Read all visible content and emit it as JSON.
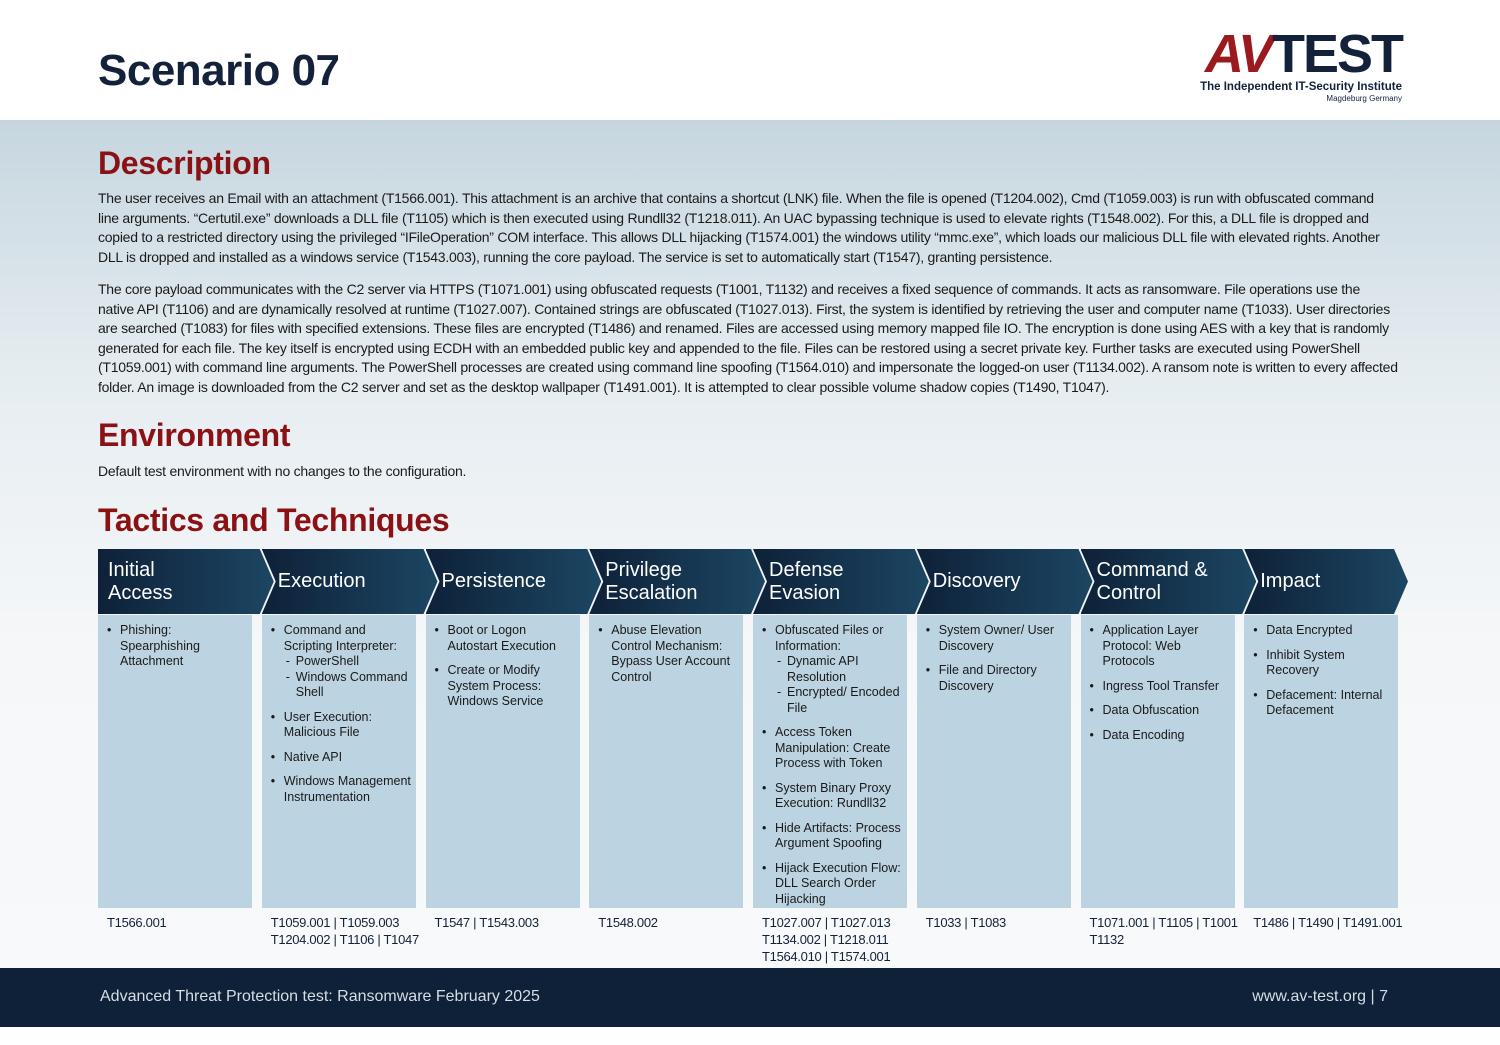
{
  "header": {
    "title": "Scenario 07",
    "logo": {
      "brand_left": "AV",
      "brand_right": "TEST",
      "tagline": "The Independent IT-Security Institute",
      "location": "Magdeburg Germany"
    }
  },
  "description": {
    "heading": "Description",
    "paragraphs": [
      "The user receives an Email with an attachment (T1566.001). This attachment is an archive that contains a shortcut (LNK) file. When the file is opened (T1204.002), Cmd (T1059.003) is run with obfuscated command line arguments. “Certutil.exe” downloads a DLL file (T1105) which is then executed using Rundll32 (T1218.011). An UAC bypassing technique is used to elevate rights (T1548.002). For this, a DLL file is dropped and copied to a restricted directory using the privileged “IFileOperation” COM interface. This allows DLL hijacking (T1574.001) the windows utility “mmc.exe”, which loads our malicious DLL file with elevated rights. Another DLL is dropped and installed as a windows service (T1543.003), running the core payload. The service is set to automatically start (T1547), granting persistence.",
      "The core payload communicates with the C2 server via HTTPS (T1071.001) using obfuscated requests (T1001, T1132) and receives a fixed sequence of commands. It acts as ransomware. File operations use the native API (T1106) and are dynamically resolved at runtime (T1027.007). Contained strings are obfuscated (T1027.013). First, the system is identified by retrieving the user and computer name (T1033). User directories are searched (T1083) for files with specified extensions. These files are encrypted (T1486) and renamed. Files are accessed using memory mapped file IO. The encryption is done using AES with a key that is randomly generated for each file. The key itself is encrypted using ECDH with an embedded public key and appended to the file. Files can be restored using a secret private key. Further tasks are executed using PowerShell (T1059.001) with command line arguments. The PowerShell processes are created using command line spoofing (T1564.010) and impersonate the logged-on user (T1134.002).  A ransom note is written to every affected folder. An image is downloaded from the C2 server and set as the desktop wallpaper (T1491.001). It is attempted to clear possible volume shadow copies (T1490, T1047)."
    ]
  },
  "environment": {
    "heading": "Environment",
    "text": "Default test environment with no changes to the configuration."
  },
  "tactics": {
    "heading": "Tactics and Techniques",
    "columns": [
      {
        "title_lines": [
          "Initial",
          "Access"
        ],
        "items": [
          {
            "text": "Phishing: Spearphishing Attachment"
          }
        ],
        "ids": "T1566.001"
      },
      {
        "title_lines": [
          "Execution"
        ],
        "items": [
          {
            "text": "Command and Scripting Interpreter:",
            "sub": [
              "PowerShell",
              "Windows Command Shell"
            ]
          },
          {
            "text": "User Execution: Malicious File"
          },
          {
            "text": "Native API"
          },
          {
            "text": "Windows Management Instrumentation"
          }
        ],
        "ids": "T1059.001 | T1059.003 T1204.002 | T1106 | T1047"
      },
      {
        "title_lines": [
          "Persistence"
        ],
        "items": [
          {
            "text": "Boot or Logon Autostart Execution"
          },
          {
            "text": "Create or Modify System Process: Windows Service"
          }
        ],
        "ids": "T1547 | T1543.003"
      },
      {
        "title_lines": [
          "Privilege",
          "Escalation"
        ],
        "items": [
          {
            "text": "Abuse Elevation Control Mechanism: Bypass User Account Control"
          }
        ],
        "ids": "T1548.002"
      },
      {
        "title_lines": [
          "Defense",
          "Evasion"
        ],
        "items": [
          {
            "text": "Obfuscated Files or Information:",
            "sub": [
              "Dynamic API Resolution",
              "Encrypted/ Encoded File"
            ]
          },
          {
            "text": "Access Token Manipulation: Create Process with Token"
          },
          {
            "text": "System Binary Proxy Execution: Rundll32"
          },
          {
            "text": "Hide Artifacts: Process Argument Spoofing"
          },
          {
            "text": "Hijack Execution Flow: DLL Search Order Hijacking"
          }
        ],
        "ids": "T1027.007 | T1027.013 T1134.002 | T1218.011 T1564.010 | T1574.001"
      },
      {
        "title_lines": [
          "Discovery"
        ],
        "items": [
          {
            "text": "System Owner/ User Discovery"
          },
          {
            "text": "File and Directory Discovery"
          }
        ],
        "ids": "T1033 | T1083"
      },
      {
        "title_lines": [
          "Command &",
          "Control"
        ],
        "items": [
          {
            "text": "Application Layer Protocol: Web Protocols"
          },
          {
            "text": "Ingress Tool Transfer"
          },
          {
            "text": "Data Obfuscation"
          },
          {
            "text": "Data Encoding"
          }
        ],
        "ids": "T1071.001 | T1105 | T1001 T1132"
      },
      {
        "title_lines": [
          "Impact"
        ],
        "items": [
          {
            "text": "Data Encrypted"
          },
          {
            "text": "Inhibit System Recovery"
          },
          {
            "text": "Defacement: Internal Defacement"
          }
        ],
        "ids": "T1486 | T1490 | T1491.001"
      }
    ]
  },
  "footer": {
    "left": "Advanced Threat Protection test: Ransomware February 2025",
    "right": "www.av-test.org | 7"
  }
}
